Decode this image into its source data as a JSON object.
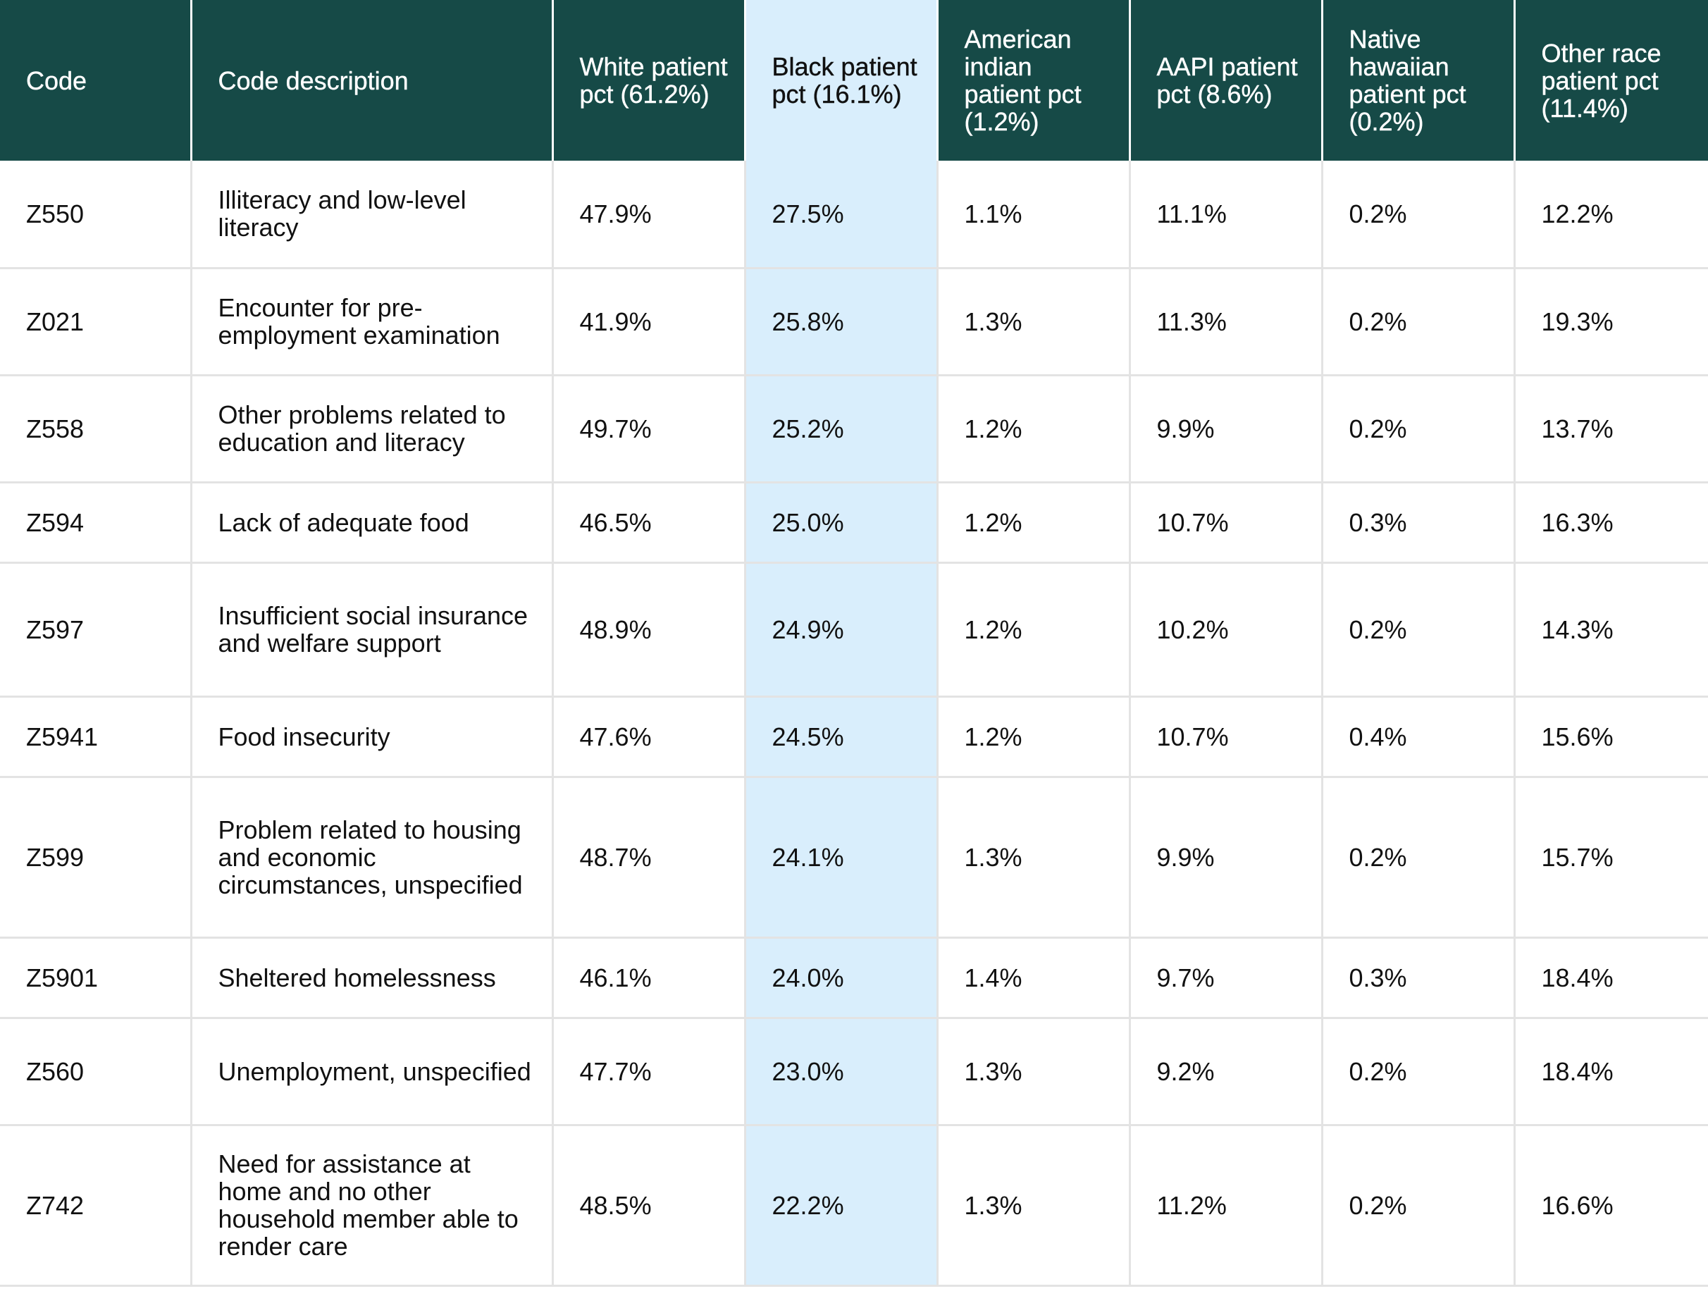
{
  "table": {
    "headers": [
      "Code",
      "Code description",
      "White patient pct (61.2%)",
      "Black patient pct (16.1%)",
      "American indian patient pct (1.2%)",
      "AAPI patient pct (8.6%)",
      "Native hawaiian patient pct (0.2%)",
      "Other race patient pct (11.4%)"
    ],
    "rows": [
      [
        "Z550",
        "Illiteracy and low-level literacy",
        "47.9%",
        "27.5%",
        "1.1%",
        "11.1%",
        "0.2%",
        "12.2%"
      ],
      [
        "Z021",
        "Encounter for pre-employment examination",
        "41.9%",
        "25.8%",
        "1.3%",
        "11.3%",
        "0.2%",
        "19.3%"
      ],
      [
        "Z558",
        "Other problems related to education and literacy",
        "49.7%",
        "25.2%",
        "1.2%",
        "9.9%",
        "0.2%",
        "13.7%"
      ],
      [
        "Z594",
        "Lack of adequate food",
        "46.5%",
        "25.0%",
        "1.2%",
        "10.7%",
        "0.3%",
        "16.3%"
      ],
      [
        "Z597",
        "Insufficient social insurance and welfare support",
        "48.9%",
        "24.9%",
        "1.2%",
        "10.2%",
        "0.2%",
        "14.3%"
      ],
      [
        "Z5941",
        "Food insecurity",
        "47.6%",
        "24.5%",
        "1.2%",
        "10.7%",
        "0.4%",
        "15.6%"
      ],
      [
        "Z599",
        "Problem related to housing and economic circumstances, unspecified",
        "48.7%",
        "24.1%",
        "1.3%",
        "9.9%",
        "0.2%",
        "15.7%"
      ],
      [
        "Z5901",
        "Sheltered homelessness",
        "46.1%",
        "24.0%",
        "1.4%",
        "9.7%",
        "0.3%",
        "18.4%"
      ],
      [
        "Z560",
        "Unemployment, unspecified",
        "47.7%",
        "23.0%",
        "1.3%",
        "9.2%",
        "0.2%",
        "18.4%"
      ],
      [
        "Z742",
        "Need for assistance at home and no other household member able to render care",
        "48.5%",
        "22.2%",
        "1.3%",
        "11.2%",
        "0.2%",
        "16.6%"
      ]
    ]
  },
  "colors": {
    "header_bg": "#164a47",
    "highlight_bg": "#d9eefc",
    "grid_line": "#e3e3e3"
  }
}
